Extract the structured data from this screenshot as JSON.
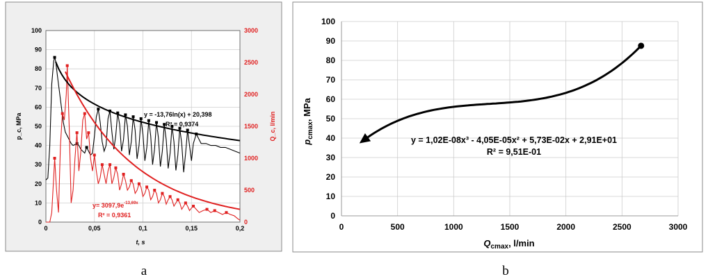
{
  "chart_data": [
    {
      "type": "line",
      "panel_label": "a",
      "xlabel": "t, s",
      "ylabel_left": "p_c, MPa",
      "ylabel_right": "Q_c, l/min",
      "xlim": [
        0,
        0.2
      ],
      "ylim_left": [
        0,
        100
      ],
      "ylim_right": [
        0,
        3000
      ],
      "x_ticks": [
        "0",
        "0,05",
        "0,1",
        "0,15",
        "0,2"
      ],
      "y_ticks_left": [
        "0",
        "10",
        "20",
        "30",
        "40",
        "50",
        "60",
        "70",
        "80",
        "90",
        "100"
      ],
      "y_ticks_right": [
        "0",
        "500",
        "1000",
        "1500",
        "2000",
        "2500",
        "3000"
      ],
      "grid": true,
      "colors": {
        "pressure": "#000000",
        "flow": "#e02020",
        "frame": "#888888"
      },
      "series": [
        {
          "axis": "left",
          "points": [
            [
              0,
              22
            ],
            [
              0.002,
              23
            ],
            [
              0.004,
              40
            ],
            [
              0.006,
              72
            ],
            [
              0.008,
              84
            ],
            [
              0.009,
              86
            ],
            [
              0.01,
              84
            ],
            [
              0.012,
              76
            ],
            [
              0.014,
              68
            ],
            [
              0.016,
              60
            ],
            [
              0.018,
              52
            ],
            [
              0.02,
              47
            ],
            [
              0.022,
              45
            ],
            [
              0.024,
              43
            ],
            [
              0.026,
              41
            ],
            [
              0.028,
              40
            ],
            [
              0.03,
              40.5
            ],
            [
              0.032,
              41
            ],
            [
              0.034,
              40
            ],
            [
              0.036,
              38
            ],
            [
              0.038,
              37
            ],
            [
              0.04,
              36
            ],
            [
              0.042,
              39
            ],
            [
              0.044,
              37
            ],
            [
              0.046,
              35
            ],
            [
              0.048,
              36
            ],
            [
              0.05,
              45
            ],
            [
              0.052,
              55
            ],
            [
              0.054,
              59
            ],
            [
              0.056,
              52
            ],
            [
              0.058,
              42
            ],
            [
              0.06,
              37
            ],
            [
              0.062,
              40
            ],
            [
              0.064,
              54
            ],
            [
              0.066,
              58
            ],
            [
              0.068,
              47
            ],
            [
              0.07,
              38
            ],
            [
              0.072,
              45
            ],
            [
              0.074,
              57
            ],
            [
              0.076,
              51
            ],
            [
              0.078,
              37
            ],
            [
              0.08,
              43
            ],
            [
              0.082,
              56
            ],
            [
              0.084,
              50
            ],
            [
              0.086,
              35
            ],
            [
              0.088,
              42
            ],
            [
              0.09,
              55
            ],
            [
              0.092,
              48
            ],
            [
              0.094,
              33
            ],
            [
              0.096,
              40
            ],
            [
              0.098,
              54
            ],
            [
              0.1,
              46
            ],
            [
              0.102,
              32
            ],
            [
              0.104,
              39
            ],
            [
              0.106,
              53
            ],
            [
              0.108,
              45
            ],
            [
              0.11,
              30
            ],
            [
              0.112,
              38
            ],
            [
              0.114,
              52
            ],
            [
              0.116,
              44
            ],
            [
              0.118,
              29
            ],
            [
              0.12,
              37
            ],
            [
              0.122,
              51
            ],
            [
              0.124,
              43
            ],
            [
              0.126,
              28
            ],
            [
              0.128,
              36
            ],
            [
              0.13,
              50
            ],
            [
              0.132,
              42
            ],
            [
              0.134,
              27
            ],
            [
              0.136,
              35
            ],
            [
              0.138,
              49
            ],
            [
              0.14,
              41
            ],
            [
              0.142,
              26
            ],
            [
              0.144,
              36
            ],
            [
              0.146,
              48
            ],
            [
              0.148,
              40
            ],
            [
              0.15,
              32
            ],
            [
              0.152,
              41
            ],
            [
              0.155,
              46
            ],
            [
              0.158,
              43
            ],
            [
              0.16,
              41
            ],
            [
              0.165,
              41
            ],
            [
              0.17,
              40
            ],
            [
              0.175,
              40
            ],
            [
              0.18,
              39
            ],
            [
              0.185,
              39
            ],
            [
              0.19,
              38
            ],
            [
              0.195,
              37
            ],
            [
              0.2,
              36
            ]
          ]
        },
        {
          "axis": "right",
          "points": [
            [
              0,
              0
            ],
            [
              0.004,
              0
            ],
            [
              0.006,
              150
            ],
            [
              0.008,
              700
            ],
            [
              0.009,
              1000
            ],
            [
              0.011,
              500
            ],
            [
              0.013,
              150
            ],
            [
              0.015,
              1200
            ],
            [
              0.017,
              1700
            ],
            [
              0.019,
              1600
            ],
            [
              0.021,
              2000
            ],
            [
              0.022,
              2450
            ],
            [
              0.024,
              1500
            ],
            [
              0.026,
              300
            ],
            [
              0.028,
              500
            ],
            [
              0.03,
              1000
            ],
            [
              0.032,
              1400
            ],
            [
              0.034,
              800
            ],
            [
              0.036,
              1100
            ],
            [
              0.038,
              1600
            ],
            [
              0.04,
              1700
            ],
            [
              0.042,
              1300
            ],
            [
              0.044,
              1400
            ],
            [
              0.046,
              1000
            ],
            [
              0.048,
              800
            ],
            [
              0.05,
              1050
            ],
            [
              0.052,
              800
            ],
            [
              0.054,
              600
            ],
            [
              0.056,
              700
            ],
            [
              0.058,
              900
            ],
            [
              0.06,
              750
            ],
            [
              0.062,
              600
            ],
            [
              0.064,
              800
            ],
            [
              0.066,
              900
            ],
            [
              0.068,
              600
            ],
            [
              0.07,
              700
            ],
            [
              0.072,
              850
            ],
            [
              0.074,
              750
            ],
            [
              0.076,
              500
            ],
            [
              0.078,
              600
            ],
            [
              0.08,
              750
            ],
            [
              0.082,
              650
            ],
            [
              0.084,
              500
            ],
            [
              0.086,
              550
            ],
            [
              0.088,
              650
            ],
            [
              0.09,
              600
            ],
            [
              0.092,
              450
            ],
            [
              0.094,
              500
            ],
            [
              0.096,
              600
            ],
            [
              0.098,
              550
            ],
            [
              0.1,
              400
            ],
            [
              0.102,
              450
            ],
            [
              0.104,
              550
            ],
            [
              0.106,
              500
            ],
            [
              0.108,
              350
            ],
            [
              0.11,
              400
            ],
            [
              0.112,
              500
            ],
            [
              0.114,
              450
            ],
            [
              0.116,
              300
            ],
            [
              0.118,
              350
            ],
            [
              0.12,
              450
            ],
            [
              0.122,
              400
            ],
            [
              0.124,
              280
            ],
            [
              0.126,
              350
            ],
            [
              0.128,
              400
            ],
            [
              0.13,
              350
            ],
            [
              0.132,
              250
            ],
            [
              0.134,
              300
            ],
            [
              0.136,
              350
            ],
            [
              0.138,
              300
            ],
            [
              0.14,
              200
            ],
            [
              0.142,
              250
            ],
            [
              0.144,
              300
            ],
            [
              0.146,
              250
            ],
            [
              0.148,
              180
            ],
            [
              0.15,
              220
            ],
            [
              0.152,
              250
            ],
            [
              0.155,
              200
            ],
            [
              0.158,
              150
            ],
            [
              0.162,
              180
            ],
            [
              0.166,
              200
            ],
            [
              0.17,
              150
            ],
            [
              0.174,
              180
            ],
            [
              0.178,
              150
            ],
            [
              0.182,
              120
            ],
            [
              0.186,
              150
            ],
            [
              0.19,
              120
            ],
            [
              0.194,
              100
            ],
            [
              0.198,
              50
            ],
            [
              0.2,
              30
            ]
          ]
        }
      ],
      "trendlines": [
        {
          "axis": "left",
          "model": "log",
          "a": -13.76,
          "b": 20.398,
          "x_range": [
            0.01,
            0.2
          ],
          "equation": "y = -13,76ln(x) + 20,398",
          "r2": "R² = 0,9374"
        },
        {
          "axis": "right",
          "model": "exp",
          "a": 3097.9,
          "b": -13.69,
          "x_range": [
            0.02,
            0.2
          ],
          "equation_prefix": "y= 3097,9e",
          "equation_exponent": "-13,69x",
          "r2": "R² = 0,9361"
        }
      ]
    },
    {
      "type": "line",
      "panel_label": "b",
      "xlabel_main": "Q",
      "xlabel_sub": "cmax",
      "xlabel_rest": ", l/min",
      "ylabel_main": "p",
      "ylabel_sub": "cmax",
      "ylabel_rest": ", MPa",
      "xlim": [
        0,
        3000
      ],
      "ylim": [
        0,
        100
      ],
      "x_ticks": [
        "0",
        "500",
        "1000",
        "1500",
        "2000",
        "2500",
        "3000"
      ],
      "y_ticks": [
        "0",
        "10",
        "20",
        "30",
        "40",
        "50",
        "60",
        "70",
        "80",
        "90",
        "100"
      ],
      "grid": true,
      "colors": {
        "curve": "#000000",
        "grid": "#cccccc",
        "frame": "#888888"
      },
      "polynomial": {
        "coefficients": [
          1.02e-08,
          -4.05e-05,
          0.0573,
          29.1
        ],
        "x_range": [
          180,
          2670
        ]
      },
      "equation": "y = 1,02E-08x³ - 4,05E-05x² + 5,73E-02x + 2,91E+01",
      "r2": "R² = 9,51E-01"
    }
  ]
}
